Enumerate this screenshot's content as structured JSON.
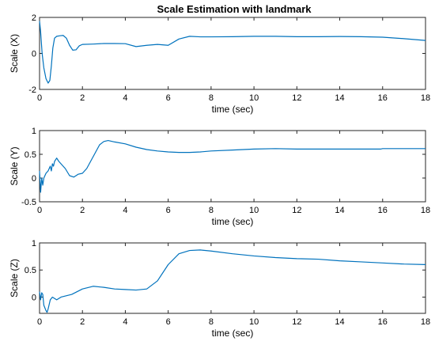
{
  "figure": {
    "title": "Scale Estimation with landmark",
    "background": "#ffffff",
    "line_color": "#0072BD"
  },
  "chart_data": [
    {
      "type": "line",
      "title": "Scale Estimation with landmark",
      "xlabel": "time (sec)",
      "ylabel": "Scale (X)",
      "xlim": [
        0,
        18
      ],
      "ylim": [
        -2,
        2
      ],
      "xticks": [
        0,
        2,
        4,
        6,
        8,
        10,
        12,
        14,
        16,
        18
      ],
      "yticks": [
        -2,
        0,
        2
      ],
      "grid": false,
      "series": [
        {
          "x": [
            0,
            0.05,
            0.12,
            0.2,
            0.3,
            0.4,
            0.48,
            0.55,
            0.62,
            0.7,
            0.8,
            0.95,
            1.1,
            1.25,
            1.4,
            1.55,
            1.7,
            1.85,
            2.0,
            2.5,
            3.0,
            3.5,
            4.0,
            4.5,
            5.0,
            5.5,
            6.0,
            6.5,
            7.0,
            7.5,
            8,
            9,
            10,
            11,
            12,
            13,
            14,
            15,
            16,
            17,
            18
          ],
          "y": [
            1.8,
            1.2,
            0.0,
            -0.8,
            -1.4,
            -1.65,
            -1.5,
            -0.7,
            0.3,
            0.85,
            0.95,
            0.98,
            1.0,
            0.85,
            0.45,
            0.18,
            0.2,
            0.42,
            0.5,
            0.52,
            0.55,
            0.55,
            0.54,
            0.38,
            0.45,
            0.5,
            0.45,
            0.8,
            0.95,
            0.92,
            0.92,
            0.93,
            0.95,
            0.95,
            0.93,
            0.93,
            0.94,
            0.93,
            0.9,
            0.82,
            0.72
          ]
        }
      ]
    },
    {
      "type": "line",
      "title": "",
      "xlabel": "time (sec)",
      "ylabel": "Scale (Y)",
      "xlim": [
        0,
        18
      ],
      "ylim": [
        -0.5,
        1
      ],
      "xticks": [
        0,
        2,
        4,
        6,
        8,
        10,
        12,
        14,
        16,
        18
      ],
      "yticks": [
        -0.5,
        0,
        0.5,
        1
      ],
      "grid": false,
      "series": [
        {
          "x": [
            0,
            0.05,
            0.1,
            0.15,
            0.2,
            0.3,
            0.4,
            0.5,
            0.55,
            0.6,
            0.65,
            0.7,
            0.8,
            0.9,
            1.0,
            1.2,
            1.4,
            1.6,
            1.8,
            2.0,
            2.2,
            2.5,
            2.8,
            3.0,
            3.2,
            3.5,
            4.0,
            4.5,
            5.0,
            5.5,
            6.0,
            6.5,
            7.0,
            7.5,
            8,
            9,
            10,
            11,
            12,
            13,
            14,
            15,
            15.9,
            16.0,
            17,
            18
          ],
          "y": [
            0.15,
            -0.3,
            0.0,
            -0.15,
            0.0,
            0.1,
            0.15,
            0.25,
            0.15,
            0.3,
            0.25,
            0.35,
            0.42,
            0.35,
            0.3,
            0.2,
            0.05,
            0.02,
            0.08,
            0.1,
            0.2,
            0.45,
            0.7,
            0.77,
            0.79,
            0.76,
            0.72,
            0.65,
            0.6,
            0.57,
            0.55,
            0.54,
            0.54,
            0.55,
            0.57,
            0.59,
            0.61,
            0.62,
            0.61,
            0.61,
            0.61,
            0.61,
            0.61,
            0.62,
            0.62,
            0.62
          ]
        }
      ]
    },
    {
      "type": "line",
      "title": "",
      "xlabel": "time (sec)",
      "ylabel": "Scale (Z)",
      "xlim": [
        0,
        18
      ],
      "ylim": [
        -0.3,
        1
      ],
      "xticks": [
        0,
        2,
        4,
        6,
        8,
        10,
        12,
        14,
        16,
        18
      ],
      "yticks": [
        0,
        0.5,
        1
      ],
      "grid": false,
      "series": [
        {
          "x": [
            0,
            0.05,
            0.1,
            0.15,
            0.2,
            0.25,
            0.3,
            0.35,
            0.4,
            0.5,
            0.6,
            0.8,
            1.0,
            1.5,
            2.0,
            2.5,
            3.0,
            3.5,
            4.0,
            4.5,
            5.0,
            5.5,
            6.0,
            6.5,
            7.0,
            7.5,
            8,
            9,
            10,
            11,
            12,
            13,
            14,
            15,
            16,
            17,
            18
          ],
          "y": [
            0.1,
            -0.05,
            0.08,
            0.05,
            -0.15,
            -0.2,
            -0.25,
            -0.28,
            -0.22,
            -0.05,
            0.0,
            -0.05,
            0.0,
            0.05,
            0.15,
            0.2,
            0.18,
            0.15,
            0.14,
            0.13,
            0.15,
            0.3,
            0.6,
            0.8,
            0.86,
            0.87,
            0.85,
            0.8,
            0.76,
            0.73,
            0.71,
            0.7,
            0.67,
            0.65,
            0.63,
            0.61,
            0.6
          ]
        }
      ]
    }
  ]
}
